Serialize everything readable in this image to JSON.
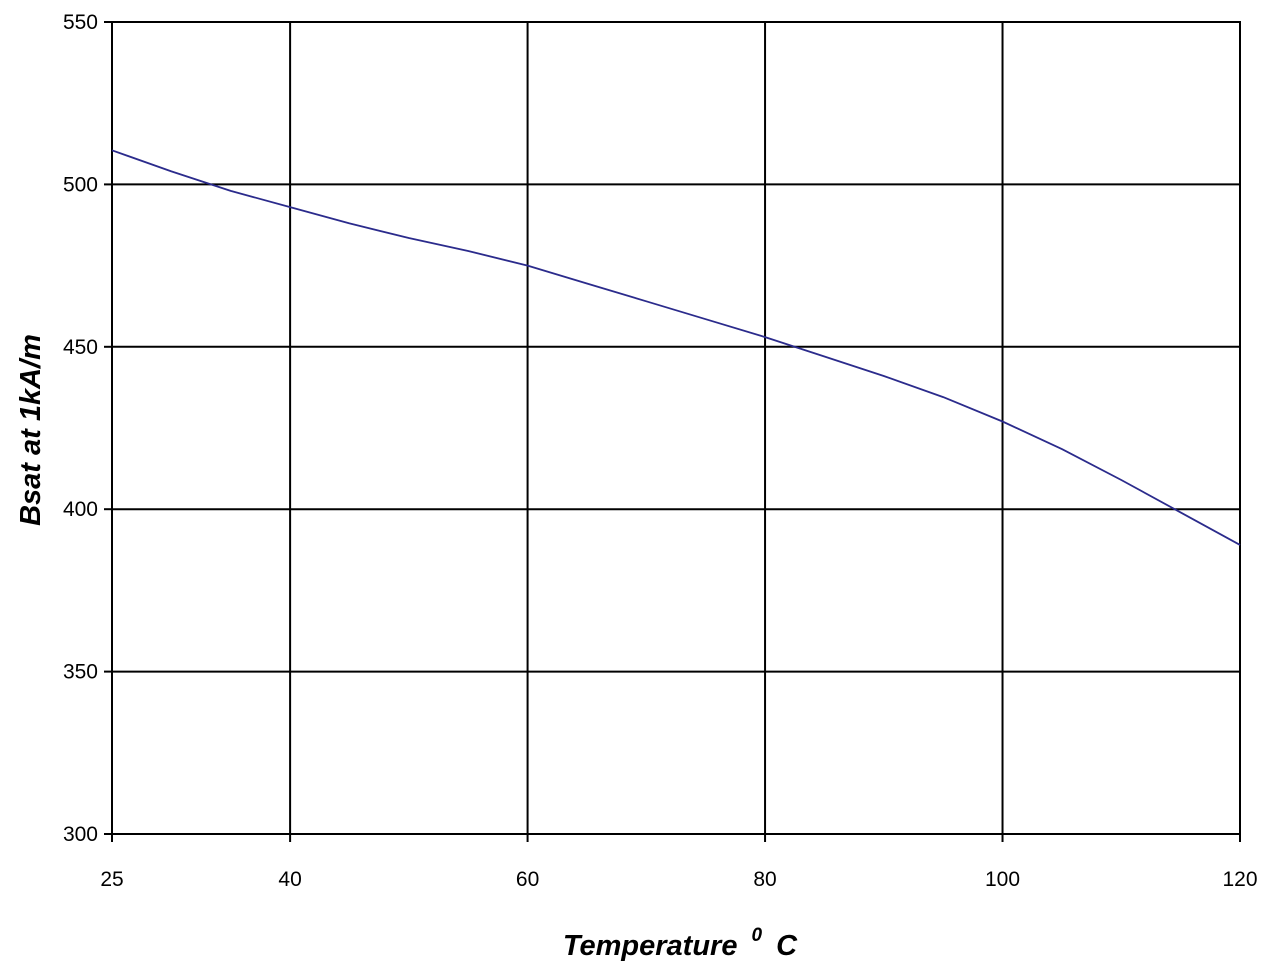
{
  "chart_data": {
    "type": "line",
    "title": "",
    "xlabel": "Temperature",
    "xlabel_sup": "0",
    "xlabel_unit": "C",
    "ylabel": "Bsat at 1kA/m",
    "xlim": [
      25,
      120
    ],
    "ylim": [
      300,
      550
    ],
    "x_ticks": [
      25,
      40,
      60,
      80,
      100,
      120
    ],
    "y_ticks": [
      300,
      350,
      400,
      450,
      500,
      550
    ],
    "grid": true,
    "series": [
      {
        "color": "#2b2b8c",
        "x": [
          25,
          30,
          35,
          40,
          45,
          50,
          55,
          60,
          65,
          70,
          75,
          80,
          85,
          90,
          95,
          100,
          105,
          110,
          115,
          120
        ],
        "y": [
          510.5,
          504,
          498,
          493,
          488,
          483.5,
          479.5,
          475,
          469.5,
          464,
          458.5,
          453,
          447,
          441,
          434.5,
          427,
          418.5,
          409,
          399,
          389
        ]
      }
    ]
  }
}
